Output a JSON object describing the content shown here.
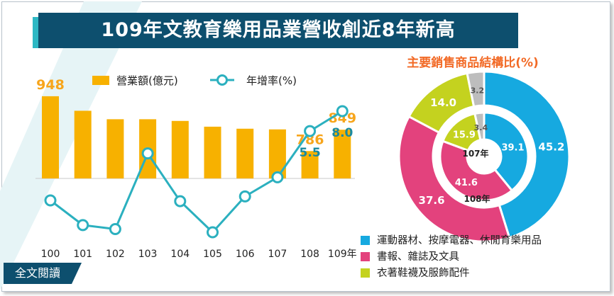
{
  "title": "109年文教育樂用品業營收創近8年新高",
  "colors": {
    "bar": "#f7b100",
    "line": "#2bb0bf",
    "bar_label": "#f7a51b",
    "rate_label": "#1a8aa0",
    "title_bg": "#0d4f6e",
    "pie_title": "#f26a26",
    "seg_sports": "#16a9e0",
    "seg_books": "#e3427d",
    "seg_clothing": "#c4d21f",
    "seg_other": "#bdbdbd"
  },
  "chart_data": [
    {
      "type": "bar+line",
      "categories": [
        "100",
        "101",
        "102",
        "103",
        "104",
        "105",
        "106",
        "107",
        "108",
        "109年"
      ],
      "series": [
        {
          "name": "營業額(億元)",
          "type": "bar",
          "values": [
            948,
            905,
            880,
            880,
            875,
            858,
            852,
            850,
            786,
            849
          ],
          "shown_labels": [
            "948",
            "",
            "",
            "",
            "",
            "",
            "",
            "",
            "786",
            "849"
          ]
        },
        {
          "name": "年增率(%)",
          "type": "line",
          "values": [
            -3.2,
            -6.3,
            -6.8,
            2.7,
            -3.3,
            -7.2,
            -2.7,
            -0.3,
            5.5,
            8.0
          ],
          "shown_labels": [
            "",
            "",
            "",
            "",
            "",
            "",
            "",
            "",
            "5.5",
            "8.0"
          ]
        }
      ]
    },
    {
      "type": "pie",
      "title": "主要銷售商品結構比(%)",
      "rings": [
        {
          "name": "108年",
          "values": [
            39.1,
            41.6,
            15.9,
            3.4
          ],
          "labels": [
            "39.1",
            "41.6",
            "15.9",
            "3.4"
          ]
        },
        {
          "name": "107年",
          "values": [
            45.2,
            37.6,
            14.0,
            3.2
          ],
          "labels": [
            "45.2",
            "37.6",
            "14.0",
            "3.2"
          ]
        }
      ],
      "legend": [
        "運動器材、按摩電器、休閒育樂用品",
        "書報、雜誌及文具",
        "衣著鞋襪及服飾配件"
      ]
    }
  ],
  "legend_bar": "營業額(億元)",
  "legend_line": "年增率(%)",
  "ring_label_inner": "107年",
  "ring_label_outer": "108年",
  "button_label": "全文閱讀"
}
